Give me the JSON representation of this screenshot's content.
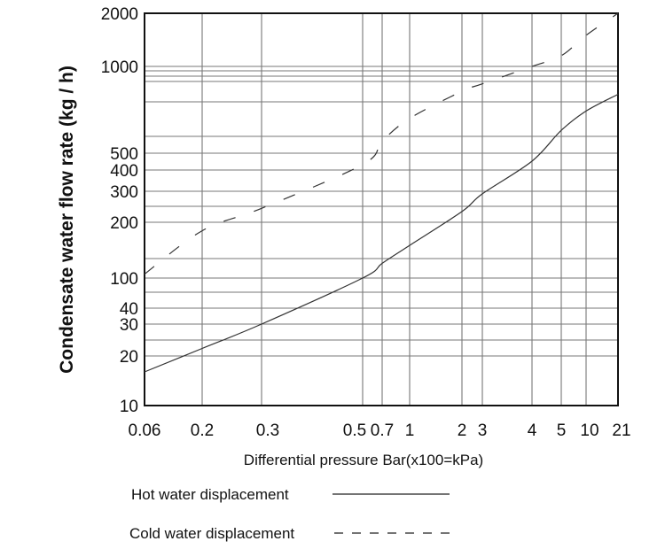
{
  "chart_data": {
    "type": "line",
    "title": "",
    "xlabel": "Differential pressure Bar(x100=kPa)",
    "ylabel": "Condensate water flow rate (kg / h)",
    "x_tick_labels": [
      "0.06",
      "0.2",
      "0.3",
      "0.5",
      "0.7",
      "1",
      "2",
      "3",
      "4",
      "5",
      "10",
      "21"
    ],
    "y_tick_labels": [
      "10",
      "20",
      "30",
      "40",
      "100",
      "200",
      "300",
      "400",
      "500",
      "1000",
      "2000"
    ],
    "y_scale": "log",
    "ylim": [
      10,
      2000
    ],
    "xlim": [
      0.06,
      21
    ],
    "grid": true,
    "legend_position": "bottom",
    "series": [
      {
        "name": "Hot water displacement",
        "line_style": "solid",
        "color": "#333333",
        "x": [
          "0.06",
          "0.2",
          "0.3",
          "0.5",
          "0.7",
          "1",
          "2",
          "3",
          "4",
          "5",
          "10",
          "21"
        ],
        "y": [
          16,
          22,
          30,
          100,
          120,
          150,
          230,
          290,
          450,
          600,
          700,
          800
        ]
      },
      {
        "name": "Cold water displacement",
        "line_style": "dashed",
        "color": "#333333",
        "x": [
          "0.06",
          "0.2",
          "0.3",
          "0.5",
          "0.7",
          "1",
          "2",
          "3",
          "4",
          "5",
          "10",
          "21"
        ],
        "y": [
          105,
          180,
          240,
          430,
          550,
          660,
          820,
          870,
          1000,
          1150,
          1500,
          2000
        ]
      }
    ]
  }
}
